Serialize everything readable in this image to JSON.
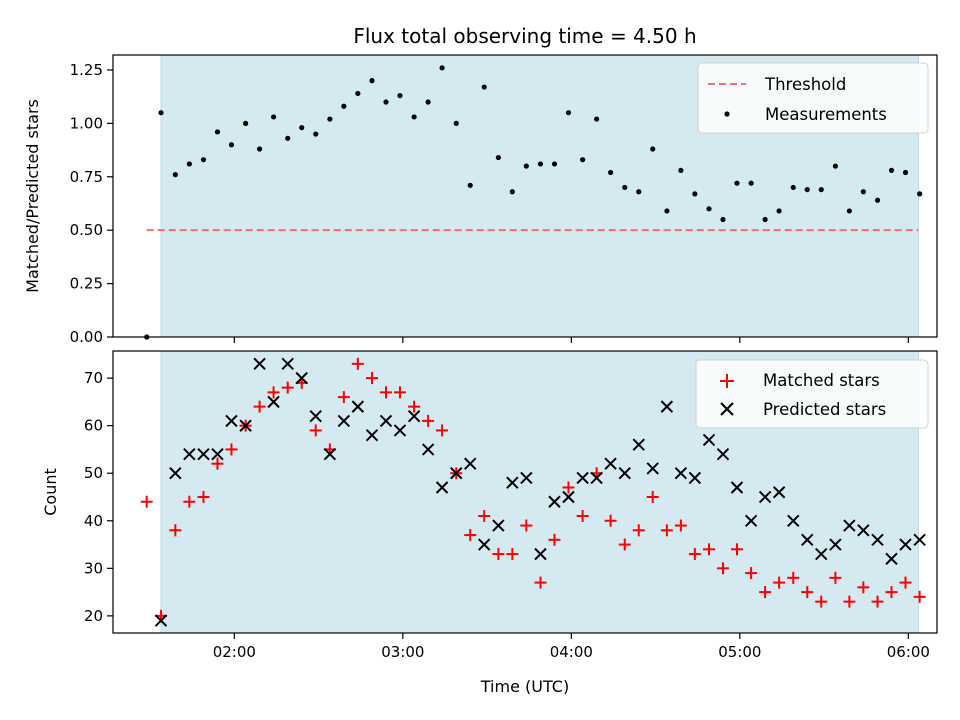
{
  "chart_data": {
    "title": "Flux total observing time = 4.50 h",
    "x_axis": {
      "label": "Time (UTC)",
      "ticks": [
        "02:00",
        "03:00",
        "04:00",
        "05:00",
        "06:00"
      ],
      "tick_values": [
        2.0,
        3.0,
        4.0,
        5.0,
        6.0
      ],
      "range": [
        1.28,
        6.17
      ]
    },
    "shaded_interval": {
      "start": 1.565,
      "end": 6.06,
      "color": "#d4eaf0"
    },
    "panels": [
      {
        "type": "scatter",
        "ylabel": "Matched/Predicted stars",
        "ylim": [
          0,
          1.32
        ],
        "yticks": [
          0.0,
          0.25,
          0.5,
          0.75,
          1.0,
          1.25
        ],
        "ytick_labels": [
          "0.00",
          "0.25",
          "0.50",
          "0.75",
          "1.00",
          "1.25"
        ],
        "legend_position": "upper right",
        "threshold": {
          "name": "Threshold",
          "value": 0.5,
          "x_range": [
            1.48,
            6.06
          ],
          "color": "#f07070"
        },
        "series": [
          {
            "name": "Measurements",
            "marker": "dot",
            "color": "#000000",
            "x": [
              1.48,
              1.565,
              1.65,
              1.733,
              1.817,
              1.9,
              1.983,
              2.067,
              2.15,
              2.233,
              2.317,
              2.4,
              2.483,
              2.567,
              2.65,
              2.733,
              2.817,
              2.9,
              2.983,
              3.067,
              3.15,
              3.233,
              3.317,
              3.4,
              3.483,
              3.567,
              3.65,
              3.733,
              3.817,
              3.9,
              3.983,
              4.067,
              4.15,
              4.233,
              4.317,
              4.4,
              4.483,
              4.567,
              4.65,
              4.733,
              4.817,
              4.9,
              4.983,
              5.067,
              5.15,
              5.233,
              5.317,
              5.4,
              5.483,
              5.567,
              5.65,
              5.733,
              5.817,
              5.9,
              5.983,
              6.067
            ],
            "y": [
              0.0,
              1.05,
              0.76,
              0.81,
              0.83,
              0.96,
              0.9,
              1.0,
              0.88,
              1.03,
              0.93,
              0.98,
              0.95,
              1.02,
              1.08,
              1.14,
              1.2,
              1.1,
              1.13,
              1.03,
              1.1,
              1.26,
              1.0,
              0.71,
              1.17,
              0.84,
              0.68,
              0.8,
              0.81,
              0.81,
              1.05,
              0.83,
              1.02,
              0.77,
              0.7,
              0.68,
              0.88,
              0.59,
              0.78,
              0.67,
              0.6,
              0.55,
              0.72,
              0.72,
              0.55,
              0.59,
              0.7,
              0.69,
              0.69,
              0.8,
              0.59,
              0.68,
              0.64,
              0.78,
              0.77,
              0.67
            ]
          }
        ]
      },
      {
        "type": "scatter",
        "ylabel": "Count",
        "ylim": [
          16.4,
          75.7
        ],
        "yticks": [
          20,
          30,
          40,
          50,
          60,
          70
        ],
        "ytick_labels": [
          "20",
          "30",
          "40",
          "50",
          "60",
          "70"
        ],
        "legend_position": "upper right",
        "series": [
          {
            "name": "Matched stars",
            "marker": "plus",
            "color": "#ff0000",
            "x": [
              1.48,
              1.565,
              1.65,
              1.733,
              1.817,
              1.9,
              1.983,
              2.067,
              2.15,
              2.233,
              2.317,
              2.4,
              2.483,
              2.567,
              2.65,
              2.733,
              2.817,
              2.9,
              2.983,
              3.067,
              3.15,
              3.233,
              3.317,
              3.4,
              3.483,
              3.567,
              3.65,
              3.733,
              3.817,
              3.9,
              3.983,
              4.067,
              4.15,
              4.233,
              4.317,
              4.4,
              4.483,
              4.567,
              4.65,
              4.733,
              4.817,
              4.9,
              4.983,
              5.067,
              5.15,
              5.233,
              5.317,
              5.4,
              5.483,
              5.567,
              5.65,
              5.733,
              5.817,
              5.9,
              5.983,
              6.067
            ],
            "y": [
              44,
              20,
              38,
              44,
              45,
              52,
              55,
              60,
              64,
              67,
              68,
              69,
              59,
              55,
              66,
              73,
              70,
              67,
              67,
              64,
              61,
              59,
              50,
              37,
              41,
              33,
              33,
              39,
              27,
              36,
              47,
              41,
              50,
              40,
              35,
              38,
              45,
              38,
              39,
              33,
              34,
              30,
              34,
              29,
              25,
              27,
              28,
              25,
              23,
              28,
              23,
              26,
              23,
              25,
              27,
              24
            ]
          },
          {
            "name": "Predicted stars",
            "marker": "x",
            "color": "#000000",
            "x": [
              1.565,
              1.65,
              1.733,
              1.817,
              1.9,
              1.983,
              2.067,
              2.15,
              2.233,
              2.317,
              2.4,
              2.483,
              2.567,
              2.65,
              2.733,
              2.817,
              2.9,
              2.983,
              3.067,
              3.15,
              3.233,
              3.317,
              3.4,
              3.483,
              3.567,
              3.65,
              3.733,
              3.817,
              3.9,
              3.983,
              4.067,
              4.15,
              4.233,
              4.317,
              4.4,
              4.483,
              4.567,
              4.65,
              4.733,
              4.817,
              4.9,
              4.983,
              5.067,
              5.15,
              5.233,
              5.317,
              5.4,
              5.483,
              5.567,
              5.65,
              5.733,
              5.817,
              5.9,
              5.983,
              6.067
            ],
            "y": [
              19,
              50,
              54,
              54,
              54,
              61,
              60,
              73,
              65,
              73,
              70,
              62,
              54,
              61,
              64,
              58,
              61,
              59,
              62,
              55,
              47,
              50,
              52,
              35,
              39,
              48,
              49,
              33,
              44,
              45,
              49,
              49,
              52,
              50,
              56,
              51,
              64,
              50,
              49,
              57,
              54,
              47,
              40,
              45,
              46,
              40,
              36,
              33,
              35,
              39,
              38,
              36,
              32,
              35,
              36
            ]
          }
        ]
      }
    ]
  }
}
